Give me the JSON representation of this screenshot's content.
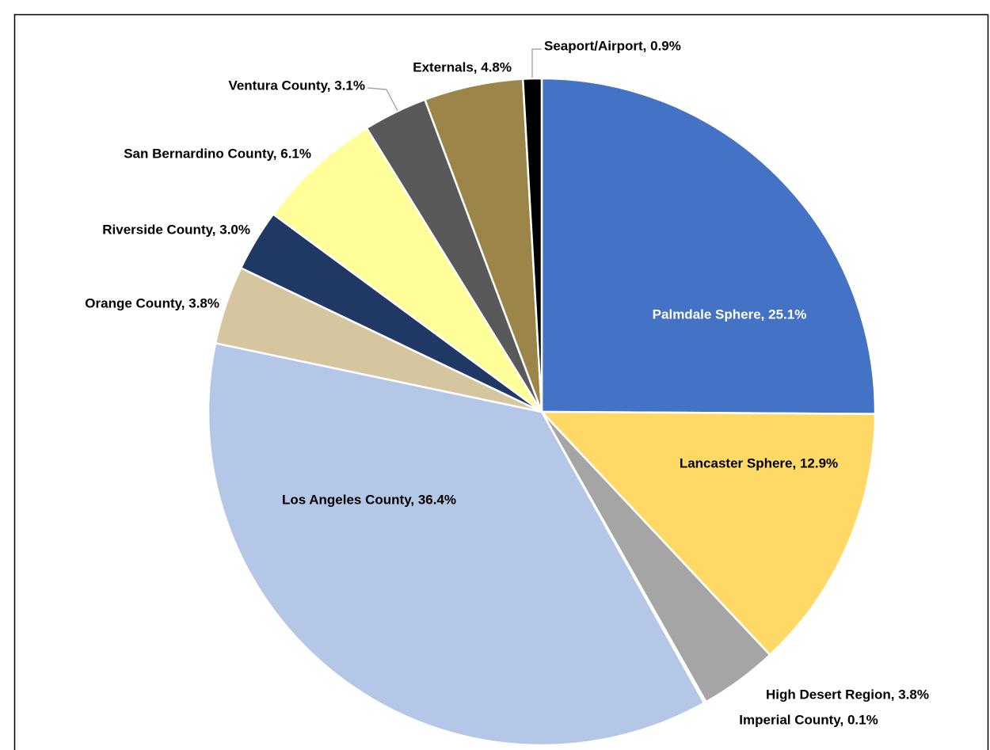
{
  "chart_data": {
    "type": "pie",
    "values": [
      25.1,
      12.9,
      3.8,
      0.1,
      36.4,
      3.8,
      3.0,
      6.1,
      3.1,
      4.8,
      0.9
    ],
    "value_labels": [
      "Palmdale Sphere, 25.1%",
      "Lancaster Sphere, 12.9%",
      "High Desert Region, 3.8%",
      "Imperial County, 0.1%",
      "Los Angeles County, 36.4%",
      "Orange County, 3.8%",
      "Riverside County, 3.0%",
      "San Bernardino County, 6.1%",
      "Ventura County, 3.1%",
      "Externals, 4.8%",
      "Seaport/Airport, 0.9%"
    ],
    "colors": [
      "#4472c4",
      "#ffd966",
      "#a5a5a5",
      "#2f4f8f",
      "#b4c7e7",
      "#d6c6a0",
      "#203864",
      "#ffff99",
      "#595959",
      "#9c8549",
      "#000000"
    ]
  }
}
